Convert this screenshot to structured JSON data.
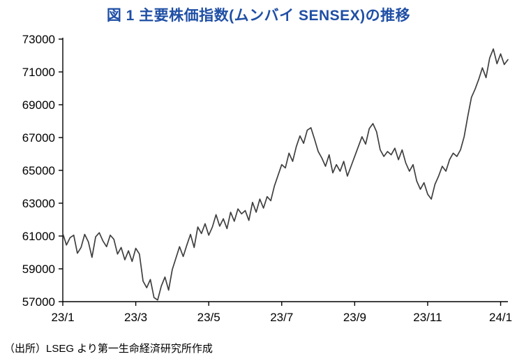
{
  "title": "図 1  主要株価指数(ムンバイ SENSEX)の推移",
  "source": "（出所）LSEG より第一生命経済研究所作成",
  "chart_data": {
    "type": "line",
    "title": "図 1  主要株価指数(ムンバイ SENSEX)の推移",
    "xlabel": "",
    "ylabel": "",
    "legend": [],
    "grid": false,
    "line_color": "#3f3f3f",
    "axis_color": "#000000",
    "title_color": "#1f4fa5",
    "ylim": [
      57000,
      73000
    ],
    "y_ticks": [
      57000,
      59000,
      61000,
      63000,
      65000,
      67000,
      69000,
      71000,
      73000
    ],
    "xlim": [
      0,
      12.2
    ],
    "x_tick_positions": [
      0,
      2,
      4,
      6,
      8,
      10,
      12
    ],
    "x_tick_labels": [
      "23/1",
      "23/3",
      "23/5",
      "23/7",
      "23/9",
      "23/11",
      "24/1"
    ],
    "x_months_per_point": 0.1,
    "series_name": "SENSEX",
    "values": [
      61150,
      60450,
      60900,
      61050,
      59950,
      60300,
      61100,
      60650,
      59700,
      60950,
      61200,
      60700,
      60350,
      61050,
      60800,
      59900,
      60300,
      59550,
      60100,
      59450,
      60250,
      59900,
      58250,
      57850,
      58350,
      57250,
      57100,
      57950,
      58500,
      57700,
      58950,
      59650,
      60350,
      59750,
      60450,
      61100,
      60300,
      61550,
      61150,
      61750,
      61050,
      61550,
      62300,
      61600,
      62050,
      61450,
      62450,
      61900,
      62650,
      62350,
      62550,
      61950,
      63050,
      62450,
      63250,
      62700,
      63400,
      63150,
      64050,
      64700,
      65350,
      65150,
      66050,
      65550,
      66450,
      67100,
      66650,
      67450,
      67600,
      66900,
      66150,
      65750,
      65250,
      65950,
      64850,
      65350,
      64950,
      65550,
      64650,
      65250,
      65850,
      66450,
      67050,
      66600,
      67550,
      67850,
      67350,
      66250,
      65850,
      66150,
      65950,
      66350,
      65650,
      66250,
      65450,
      64950,
      65350,
      64350,
      63850,
      64250,
      63550,
      63250,
      64150,
      64650,
      65250,
      64950,
      65650,
      66050,
      65850,
      66250,
      67050,
      68300,
      69450,
      69950,
      70550,
      71250,
      70650,
      71850,
      72400,
      71500,
      72100,
      71450,
      71750
    ]
  }
}
